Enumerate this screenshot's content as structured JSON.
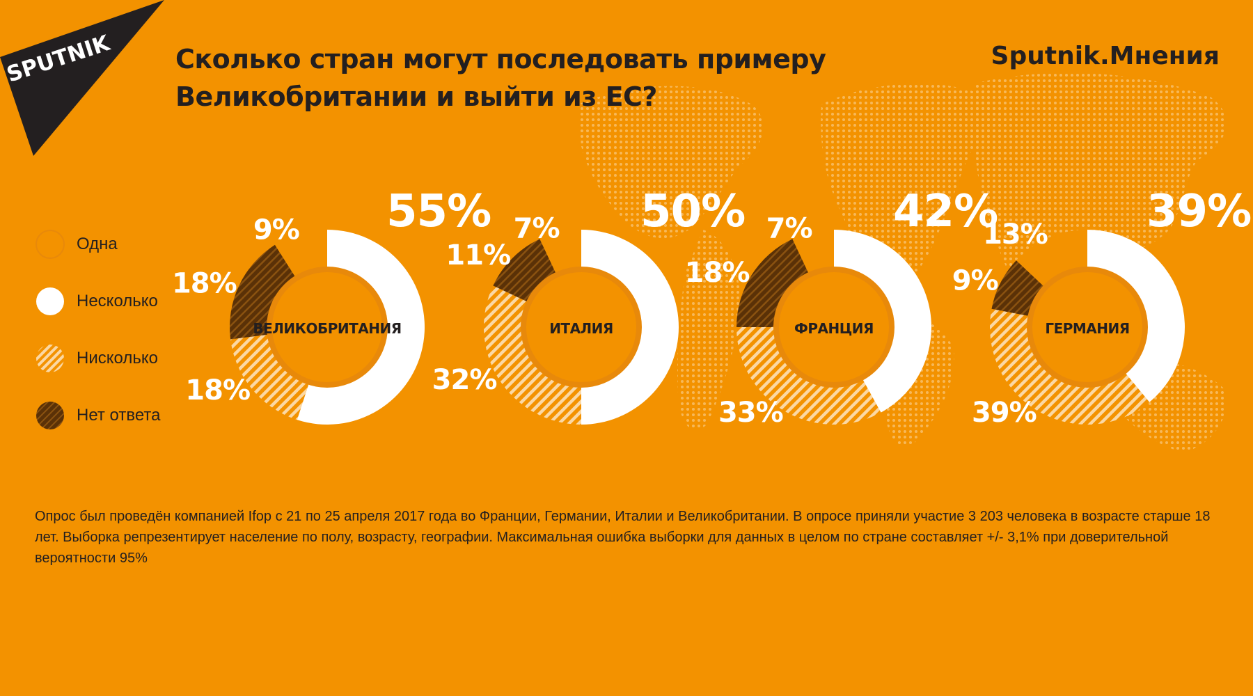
{
  "header": {
    "logo_text": "SPUTNIK",
    "title": "Сколько стран могут последовать примеру Великобритании и выйти из ЕС?",
    "brand": "Sputnik.Мнения"
  },
  "colors": {
    "background": "#F39200",
    "dark": "#5A3107",
    "white": "#FFFFFF",
    "hatch": "#FBD8A4",
    "text": "#231F20"
  },
  "legend": [
    {
      "label": "Одна",
      "style": "orange"
    },
    {
      "label": "Несколько",
      "style": "white"
    },
    {
      "label": "Нисколько",
      "style": "hatch"
    },
    {
      "label": "Нет ответа",
      "style": "dark"
    }
  ],
  "chart_data": {
    "type": "donut",
    "categories": [
      "Одна",
      "Несколько",
      "Нисколько",
      "Нет ответа"
    ],
    "series": [
      {
        "name": "ВЕЛИКОБРИТАНИЯ",
        "values": [
          9,
          55,
          18,
          18
        ]
      },
      {
        "name": "ИТАЛИЯ",
        "values": [
          7,
          50,
          32,
          11
        ]
      },
      {
        "name": "ФРАНЦИЯ",
        "values": [
          7,
          42,
          33,
          18
        ]
      },
      {
        "name": "ГЕРМАНИЯ",
        "values": [
          13,
          39,
          39,
          9
        ]
      }
    ]
  },
  "footnote": "Опрос был проведён компанией Ifop с 21 по 25 апреля 2017 года во Франции, Германии, Италии и Великобритании. В опросе приняли участие 3 203 человека в возрасте старше 18 лет. Выборка репрезентирует население по полу, возрасту, географии. Максимальная ошибка выборки для данных в целом по стране составляет +/- 3,1% при доверительной вероятности 95%"
}
